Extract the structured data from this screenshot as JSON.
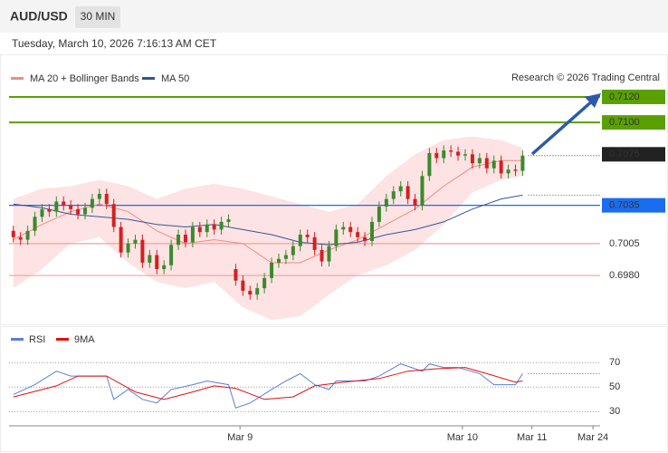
{
  "header": {
    "symbol": "AUD/USD",
    "interval": "30 MIN",
    "timestamp": "Tuesday, March 10, 2026 7:16:13 AM CET"
  },
  "chart_data": [
    {
      "type": "candlestick",
      "source": "Research © 2026 Trading Central",
      "xlim": [
        -0.6,
        81.8
      ],
      "ylim": [
        0.69438,
        0.71285
      ],
      "candles": {
        "up_color": "#3b8a2c",
        "down_color": "#d42020",
        "open": [
          0.7015,
          0.701,
          0.7008,
          0.7015,
          0.7026,
          0.7032,
          0.703,
          0.7038,
          0.7035,
          0.7032,
          0.7028,
          0.7033,
          0.704,
          0.7044,
          0.7036,
          0.7018,
          0.6998,
          0.7005,
          0.7008,
          0.699,
          0.6996,
          0.6985,
          0.6988,
          0.7004,
          0.7012,
          0.7006,
          0.7018,
          0.7014,
          0.702,
          0.7016,
          0.7022,
          0.6985,
          0.6976,
          0.6968,
          0.6965,
          0.697,
          0.6978,
          0.699,
          0.6993,
          0.6996,
          0.7003,
          0.7012,
          0.701,
          0.7,
          0.6991,
          0.7003,
          0.7016,
          0.7018,
          0.7014,
          0.701,
          0.7007,
          0.7022,
          0.7034,
          0.704,
          0.7046,
          0.705,
          0.704,
          0.7035,
          0.7058,
          0.7076,
          0.7072,
          0.7078,
          0.7077,
          0.7074,
          0.7075,
          0.7068,
          0.7072,
          0.7064,
          0.707,
          0.706,
          0.7063,
          0.7062
        ],
        "high": [
          0.7019,
          0.7014,
          0.7019,
          0.703,
          0.7036,
          0.7036,
          0.7042,
          0.7042,
          0.7039,
          0.7036,
          0.7037,
          0.7044,
          0.7048,
          0.7048,
          0.704,
          0.7022,
          0.7009,
          0.7012,
          0.7012,
          0.7,
          0.7,
          0.6992,
          0.7008,
          0.7016,
          0.7016,
          0.7022,
          0.7022,
          0.7024,
          0.7024,
          0.7026,
          0.7028,
          0.6989,
          0.698,
          0.6972,
          0.6974,
          0.6982,
          0.6994,
          0.6997,
          0.7,
          0.7007,
          0.7016,
          0.7016,
          0.7014,
          0.7004,
          0.7007,
          0.702,
          0.7022,
          0.7022,
          0.7018,
          0.7014,
          0.7026,
          0.7038,
          0.7044,
          0.705,
          0.7054,
          0.7054,
          0.7044,
          0.7062,
          0.708,
          0.708,
          0.7082,
          0.7082,
          0.7081,
          0.7079,
          0.7079,
          0.7076,
          0.7076,
          0.7074,
          0.7074,
          0.7067,
          0.7067,
          0.7078
        ],
        "low": [
          0.7006,
          0.7004,
          0.7004,
          0.7011,
          0.7022,
          0.7026,
          0.7026,
          0.7031,
          0.7028,
          0.7024,
          0.7024,
          0.7029,
          0.7036,
          0.7032,
          0.7014,
          0.6994,
          0.6994,
          0.7001,
          0.6986,
          0.6986,
          0.6981,
          0.6981,
          0.6984,
          0.7,
          0.7002,
          0.7002,
          0.701,
          0.701,
          0.7012,
          0.7012,
          0.7018,
          0.6972,
          0.6964,
          0.6961,
          0.6961,
          0.6966,
          0.6974,
          0.6986,
          0.6989,
          0.6992,
          0.6999,
          0.7006,
          0.6996,
          0.6987,
          0.6987,
          0.6999,
          0.7012,
          0.701,
          0.7006,
          0.7003,
          0.7003,
          0.7018,
          0.703,
          0.7036,
          0.7042,
          0.7036,
          0.7031,
          0.7031,
          0.7054,
          0.7068,
          0.7068,
          0.7073,
          0.707,
          0.707,
          0.7064,
          0.7064,
          0.706,
          0.706,
          0.7056,
          0.7056,
          0.7058,
          0.7058
        ],
        "close": [
          0.701,
          0.7008,
          0.7015,
          0.7026,
          0.7032,
          0.703,
          0.7038,
          0.7035,
          0.7032,
          0.7028,
          0.7033,
          0.704,
          0.7044,
          0.7036,
          0.7018,
          0.6998,
          0.7005,
          0.7008,
          0.699,
          0.6996,
          0.6985,
          0.6988,
          0.7004,
          0.7012,
          0.7006,
          0.7018,
          0.7014,
          0.702,
          0.7016,
          0.7022,
          0.7024,
          0.6976,
          0.6968,
          0.6965,
          0.697,
          0.6978,
          0.699,
          0.6993,
          0.6996,
          0.7003,
          0.7012,
          0.701,
          0.7,
          0.6991,
          0.7003,
          0.7016,
          0.7018,
          0.7014,
          0.701,
          0.7007,
          0.7022,
          0.7034,
          0.704,
          0.7046,
          0.705,
          0.704,
          0.7035,
          0.7058,
          0.7076,
          0.7072,
          0.7078,
          0.7077,
          0.7074,
          0.7075,
          0.7068,
          0.7072,
          0.7064,
          0.707,
          0.706,
          0.7063,
          0.7062,
          0.7074
        ]
      },
      "series": [
        {
          "name": "MA 20 + Bollinger Bands",
          "color": "#f28b82",
          "band_color": "#fde3e3",
          "x": [
            0,
            4,
            8,
            12,
            16,
            20,
            24,
            28,
            32,
            36,
            40,
            44,
            48,
            52,
            56,
            60,
            64,
            68,
            71
          ],
          "values": [
            0.7008,
            0.702,
            0.703,
            0.7036,
            0.703,
            0.7015,
            0.7005,
            0.7008,
            0.7005,
            0.699,
            0.699,
            0.7,
            0.7008,
            0.702,
            0.7032,
            0.705,
            0.7065,
            0.707,
            0.707
          ],
          "upper": [
            0.704,
            0.7048,
            0.705,
            0.7055,
            0.705,
            0.704,
            0.7048,
            0.7052,
            0.7048,
            0.7042,
            0.7036,
            0.703,
            0.7036,
            0.7058,
            0.7075,
            0.7086,
            0.7089,
            0.7086,
            0.708
          ],
          "lower": [
            0.697,
            0.6985,
            0.7005,
            0.701,
            0.699,
            0.6975,
            0.697,
            0.6975,
            0.6955,
            0.6945,
            0.6948,
            0.6965,
            0.698,
            0.6988,
            0.7,
            0.702,
            0.7045,
            0.7055,
            0.7058
          ]
        },
        {
          "name": "MA 50",
          "color": "#34569a",
          "x": [
            0,
            4,
            8,
            12,
            16,
            20,
            24,
            28,
            32,
            36,
            40,
            44,
            48,
            52,
            56,
            60,
            64,
            68,
            71
          ],
          "values": [
            0.7036,
            0.7033,
            0.7028,
            0.7026,
            0.7024,
            0.702,
            0.7018,
            0.702,
            0.7016,
            0.7012,
            0.7006,
            0.7004,
            0.7006,
            0.7012,
            0.7016,
            0.7022,
            0.7032,
            0.704,
            0.7043
          ]
        }
      ],
      "levels": [
        {
          "value": 0.712,
          "label": "0.7120",
          "color": "#5aa000",
          "style": "box"
        },
        {
          "value": 0.71,
          "label": "0.7100",
          "color": "#5aa000",
          "style": "box"
        },
        {
          "value": 0.7075,
          "color": "#222222",
          "style": "price"
        },
        {
          "value": 0.7035,
          "color": "#1a6df0",
          "style": "box"
        },
        {
          "value": 0.7005,
          "color": "#d91c1c",
          "style": "text"
        },
        {
          "value": 0.698,
          "label": "0.6980",
          "color": "#d91c1c",
          "style": "text"
        }
      ]
    },
    {
      "type": "line",
      "xlim": [
        -0.6,
        81.8
      ],
      "ylim": [
        20,
        85
      ],
      "yticks": [
        70,
        50,
        30
      ],
      "grid": true,
      "xticks": [
        {
          "value": 31.6,
          "label": "Mar 9"
        },
        {
          "value": 62.6,
          "label": "Mar 10"
        },
        {
          "value": 72.3,
          "label": "Mar 11"
        },
        {
          "value": 80.8,
          "label": "Mar 24"
        }
      ],
      "series": [
        {
          "name": "RSI",
          "color": "#5b7fd6",
          "x": [
            0,
            3,
            6,
            8,
            11,
            13,
            14,
            16,
            18,
            20,
            22,
            25,
            27,
            30,
            31,
            33,
            36,
            38,
            40,
            42,
            44,
            45,
            49,
            51,
            54,
            57,
            58,
            60,
            62,
            65,
            67,
            70,
            71
          ],
          "values": [
            44,
            52,
            63,
            59,
            59,
            59,
            40,
            48,
            40,
            37,
            48,
            52,
            55,
            52,
            33,
            37,
            48,
            55,
            61,
            52,
            48,
            55,
            55,
            59,
            69,
            63,
            69,
            66,
            66,
            61,
            52,
            52,
            61
          ]
        },
        {
          "name": "9MA",
          "color": "#e01010",
          "x": [
            0,
            6,
            9,
            13,
            17,
            21,
            25,
            28,
            31,
            35,
            39,
            42,
            46,
            51,
            55,
            59,
            63,
            66,
            70,
            71
          ],
          "values": [
            42,
            51,
            59,
            59,
            46,
            40,
            46,
            51,
            49,
            40,
            42,
            51,
            54,
            57,
            63,
            65,
            66,
            61,
            54,
            55
          ]
        }
      ]
    }
  ]
}
